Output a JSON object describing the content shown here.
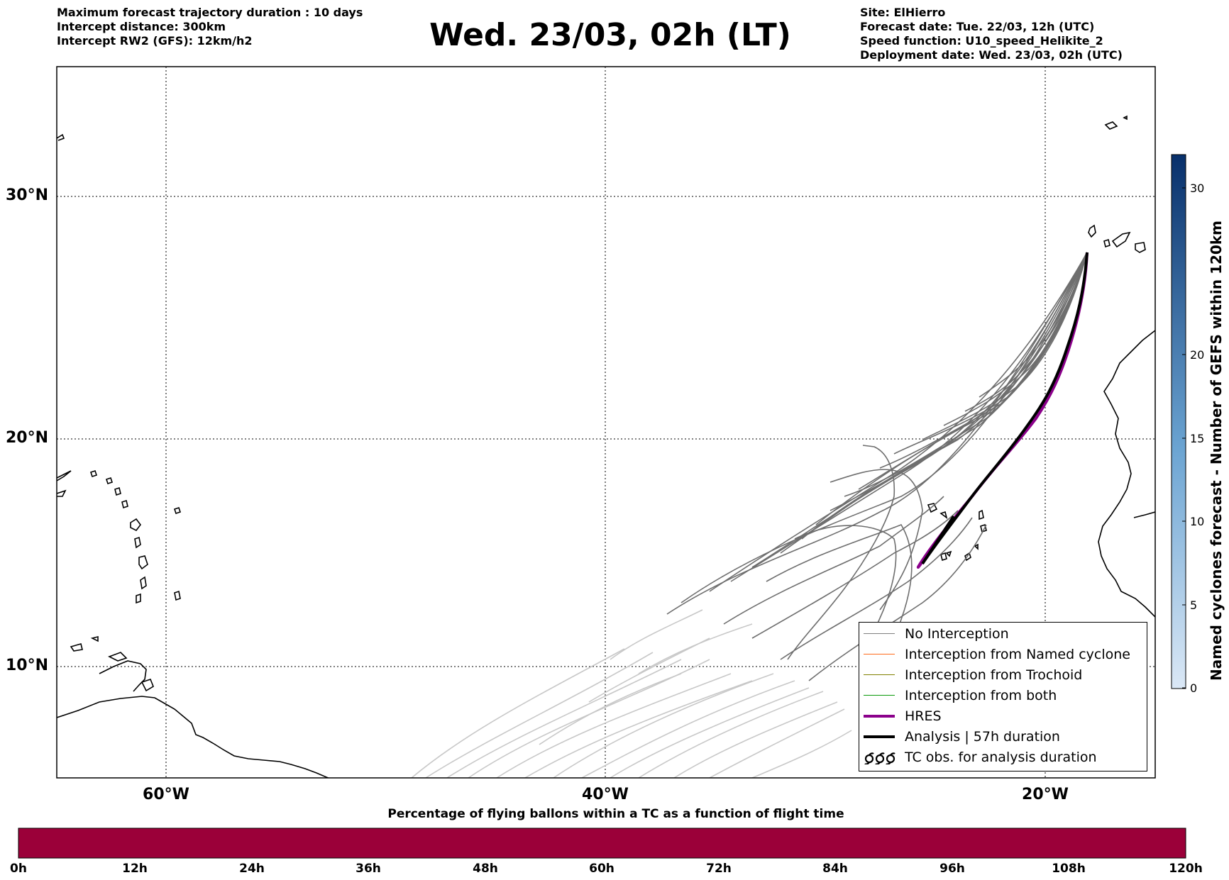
{
  "header": {
    "left_lines": [
      "Maximum forecast trajectory duration : 10 days",
      "Intercept distance: 300km",
      "Intercept RW2 (GFS):  12km/h2"
    ],
    "title": "Wed. 23/03, 02h (LT)",
    "right_lines": [
      "Site: ElHierro",
      "Forecast date: Tue. 22/03, 12h (UTC)",
      "Speed function: U10_speed_Helikite_2",
      "Deployment date: Wed. 23/03, 02h (UTC)"
    ]
  },
  "map": {
    "lon_range": [
      -65,
      15
    ],
    "lat_range": [
      5,
      35
    ],
    "visible_lon_range": [
      -65,
      -15
    ],
    "visible_lat_range": [
      5,
      35
    ],
    "lat_ticks": [
      {
        "value": 30,
        "label": "30°N"
      },
      {
        "value": 20,
        "label": "20°N"
      },
      {
        "value": 10,
        "label": "10°N"
      }
    ],
    "lon_ticks": [
      {
        "value": -60,
        "label": "60°W"
      },
      {
        "value": -40,
        "label": "40°W"
      },
      {
        "value": -20,
        "label": "20°W"
      }
    ],
    "grid": "dotted",
    "launch_site": {
      "lon": -18.2,
      "lat": 27.6
    }
  },
  "legend": {
    "placement": "lower-right",
    "items": [
      {
        "label": "No Interception",
        "color": "#808080",
        "style": "thin"
      },
      {
        "label": "Interception from Named cyclone",
        "color": "#ff6a1a",
        "style": "thin"
      },
      {
        "label": "Interception from Trochoid",
        "color": "#808000",
        "style": "thin"
      },
      {
        "label": "Interception from both",
        "color": "#0a9a0a",
        "style": "thin"
      },
      {
        "label": "HRES",
        "color": "#8b008b",
        "style": "thick"
      },
      {
        "label": "Analysis | 57h duration",
        "color": "#000000",
        "style": "thick"
      },
      {
        "label": "TC obs. for analysis duration",
        "color": "#000000",
        "style": "symbol",
        "icon": "tc-symbol-icon"
      }
    ]
  },
  "colorbar_right": {
    "title": "Named cyclones forecast - Number of GEFS within 120km",
    "range": [
      0,
      32
    ],
    "ticks": [
      0,
      5,
      10,
      15,
      20,
      30
    ],
    "colors": [
      "#dbe8f6",
      "#08306b"
    ]
  },
  "colorbar_bottom": {
    "title": "Percentage of flying ballons within a TC as a function of flight time",
    "color": "#9b0039",
    "ticks": [
      "0h",
      "12h",
      "24h",
      "36h",
      "48h",
      "60h",
      "72h",
      "84h",
      "96h",
      "108h",
      "120h"
    ]
  },
  "trajectories": {
    "hres": [
      [
        -18.2,
        27.6
      ],
      [
        -18.5,
        26.0
      ],
      [
        -19.1,
        24.0
      ],
      [
        -20.3,
        22.0
      ],
      [
        -22.2,
        20.0
      ],
      [
        -24.5,
        18.0
      ],
      [
        -26.6,
        16.3
      ]
    ],
    "analysis": [
      [
        -18.2,
        27.6
      ],
      [
        -18.6,
        25.8
      ],
      [
        -19.3,
        23.8
      ],
      [
        -20.6,
        21.8
      ],
      [
        -22.5,
        19.9
      ],
      [
        -24.8,
        17.8
      ],
      [
        -26.8,
        16.3
      ]
    ]
  }
}
